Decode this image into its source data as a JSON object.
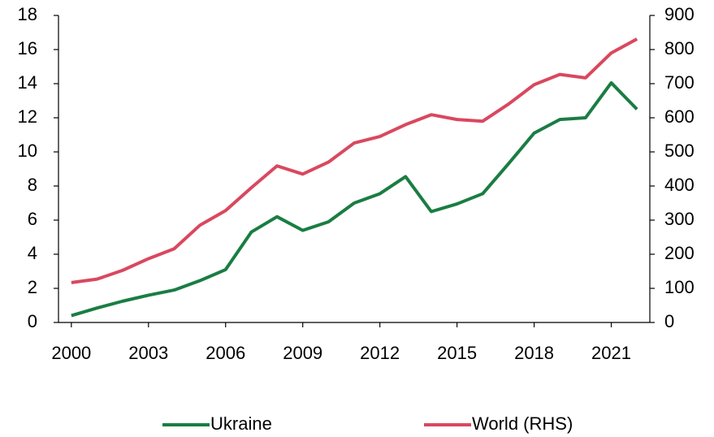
{
  "chart_data": {
    "type": "line",
    "x": [
      2000,
      2001,
      2002,
      2003,
      2004,
      2005,
      2006,
      2007,
      2008,
      2009,
      2010,
      2011,
      2012,
      2013,
      2014,
      2015,
      2016,
      2017,
      2018,
      2019,
      2020,
      2021,
      2022
    ],
    "series": [
      {
        "name": "Ukraine",
        "color": "#1a7d43",
        "values": [
          0.4,
          0.85,
          1.25,
          1.6,
          1.9,
          2.45,
          3.1,
          5.3,
          6.2,
          5.4,
          5.9,
          7.0,
          7.55,
          8.55,
          6.5,
          6.95,
          7.55,
          9.3,
          11.1,
          11.9,
          12.0,
          14.05,
          12.5
        ]
      },
      {
        "name": "World (RHS)",
        "color": "#d9485f",
        "axis": "y2",
        "values": [
          117,
          127,
          153,
          187,
          216,
          285,
          328,
          395,
          459,
          435,
          470,
          526,
          545,
          580,
          609,
          595,
          590,
          640,
          697,
          727,
          717,
          790,
          831
        ]
      }
    ],
    "xlim": [
      1999.5,
      2022.5
    ],
    "xticks": [
      2000,
      2003,
      2006,
      2009,
      2012,
      2015,
      2018,
      2021
    ],
    "ylim": [
      0,
      18
    ],
    "yticks": [
      0,
      2,
      4,
      6,
      8,
      10,
      12,
      14,
      16,
      18
    ],
    "y2lim": [
      0,
      900
    ],
    "y2ticks": [
      0,
      100,
      200,
      300,
      400,
      500,
      600,
      700,
      800,
      900
    ],
    "grid": false,
    "legend": "bottom"
  }
}
